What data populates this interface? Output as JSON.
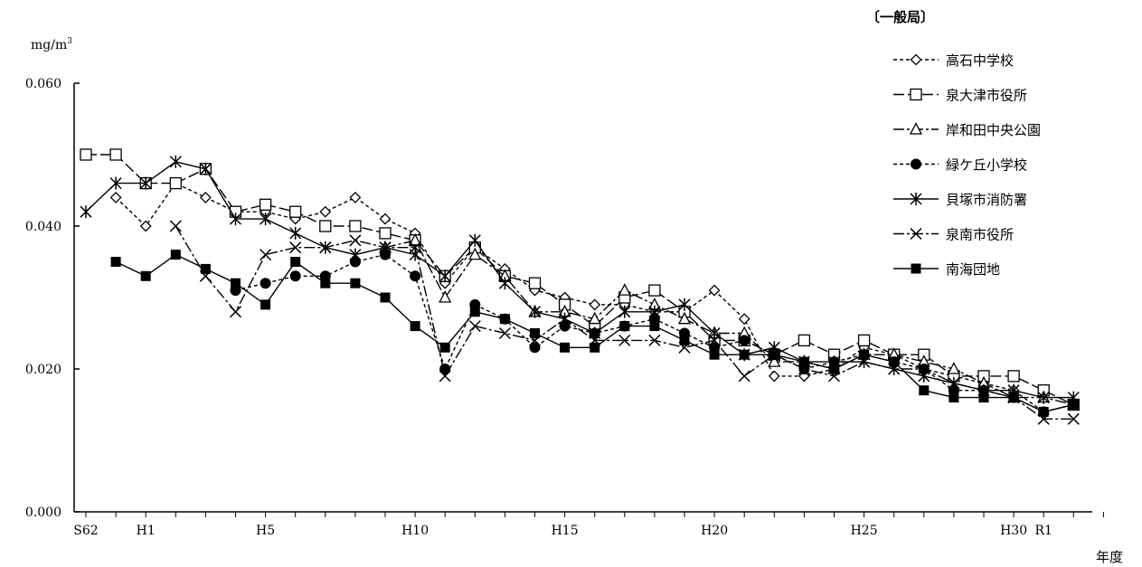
{
  "chart_data": {
    "type": "line",
    "title": "",
    "group_label": "〔一般局〕",
    "ylabel": "mg/m",
    "ylabel_sup": "3",
    "xlabel": "年度",
    "ylim": [
      0,
      0.06
    ],
    "y_ticks": [
      {
        "value": 0.0,
        "label": "0.000"
      },
      {
        "value": 0.02,
        "label": "0.020"
      },
      {
        "value": 0.04,
        "label": "0.040"
      },
      {
        "value": 0.06,
        "label": "0.060"
      }
    ],
    "x": [
      "S62",
      "S63",
      "H1",
      "H2",
      "H3",
      "H4",
      "H5",
      "H6",
      "H7",
      "H8",
      "H9",
      "H10",
      "H11",
      "H12",
      "H13",
      "H14",
      "H15",
      "H16",
      "H17",
      "H18",
      "H19",
      "H20",
      "H21",
      "H22",
      "H23",
      "H24",
      "H25",
      "H26",
      "H27",
      "H28",
      "H29",
      "H30",
      "R1",
      "R2",
      "R3"
    ],
    "x_tick_labels": [
      {
        "index": 0,
        "label": "S62"
      },
      {
        "index": 2,
        "label": "H1"
      },
      {
        "index": 6,
        "label": "H5"
      },
      {
        "index": 11,
        "label": "H10"
      },
      {
        "index": 16,
        "label": "H15"
      },
      {
        "index": 21,
        "label": "H20"
      },
      {
        "index": 26,
        "label": "H25"
      },
      {
        "index": 31,
        "label": "H30"
      },
      {
        "index": 32,
        "label": "R1"
      }
    ],
    "legend_position": "right",
    "series": [
      {
        "name": "高石中学校",
        "marker": "diamond-open",
        "dash": "4,3",
        "style": "dashed",
        "values": [
          null,
          0.044,
          0.04,
          0.046,
          0.044,
          0.042,
          0.042,
          0.041,
          0.042,
          0.044,
          0.041,
          0.039,
          0.032,
          0.037,
          0.034,
          0.031,
          0.03,
          0.029,
          0.029,
          0.028,
          0.028,
          0.031,
          0.027,
          0.019,
          0.019,
          0.02,
          0.023,
          0.022,
          0.02,
          0.019,
          0.018,
          0.017,
          0.014,
          0.015,
          null
        ]
      },
      {
        "name": "泉大津市役所",
        "marker": "square-open",
        "dash": "12,4",
        "style": "long-dash",
        "values": [
          0.05,
          0.05,
          0.046,
          0.046,
          0.048,
          0.042,
          0.043,
          0.042,
          0.04,
          0.04,
          0.039,
          0.038,
          0.033,
          0.037,
          0.033,
          0.032,
          0.029,
          0.026,
          0.03,
          0.031,
          0.028,
          0.024,
          0.024,
          0.022,
          0.024,
          0.022,
          0.024,
          0.022,
          0.022,
          0.019,
          0.019,
          0.019,
          0.017,
          0.015,
          null
        ]
      },
      {
        "name": "岸和田中央公園",
        "marker": "triangle-open",
        "dash": "12,3,3,3",
        "style": "dash-dot",
        "values": [
          null,
          null,
          null,
          null,
          null,
          null,
          null,
          null,
          null,
          null,
          0.037,
          0.038,
          0.03,
          0.036,
          0.033,
          0.028,
          0.028,
          0.027,
          0.031,
          0.029,
          0.027,
          0.025,
          0.025,
          0.021,
          0.021,
          0.02,
          0.022,
          0.022,
          0.021,
          0.02,
          0.018,
          0.016,
          0.016,
          0.015,
          null
        ]
      },
      {
        "name": "緑ケ丘小学校",
        "marker": "circle-filled",
        "dash": "4,3",
        "style": "dashed",
        "values": [
          null,
          null,
          null,
          null,
          null,
          0.031,
          0.032,
          0.033,
          0.033,
          0.035,
          0.036,
          0.033,
          0.02,
          0.029,
          0.027,
          0.023,
          0.026,
          0.025,
          0.026,
          0.027,
          0.025,
          0.023,
          0.024,
          0.022,
          0.02,
          0.021,
          0.022,
          0.021,
          0.02,
          0.017,
          0.017,
          0.016,
          0.014,
          0.015,
          null
        ]
      },
      {
        "name": "貝塚市消防署",
        "marker": "asterisk",
        "dash": "",
        "style": "solid",
        "values": [
          0.042,
          0.046,
          0.046,
          0.049,
          0.048,
          0.041,
          0.041,
          0.039,
          0.037,
          0.036,
          0.037,
          0.036,
          0.033,
          0.038,
          0.032,
          0.028,
          0.027,
          0.025,
          0.028,
          0.028,
          0.029,
          0.025,
          0.022,
          0.023,
          0.021,
          0.021,
          0.021,
          0.02,
          0.019,
          0.018,
          0.017,
          0.017,
          0.016,
          0.016,
          null
        ]
      },
      {
        "name": "泉南市役所",
        "marker": "x-cross",
        "dash": "12,3,3,3",
        "style": "dash-dot",
        "values": [
          null,
          null,
          null,
          0.04,
          0.033,
          0.028,
          0.036,
          0.037,
          0.037,
          0.038,
          0.037,
          0.037,
          0.019,
          0.026,
          0.025,
          0.024,
          0.027,
          0.024,
          0.024,
          0.024,
          0.023,
          0.024,
          0.019,
          0.022,
          0.02,
          0.019,
          0.021,
          0.02,
          0.02,
          0.018,
          0.017,
          0.016,
          0.013,
          0.013,
          null
        ]
      },
      {
        "name": "南海団地",
        "marker": "square-filled",
        "dash": "",
        "style": "solid",
        "values": [
          null,
          0.035,
          0.033,
          0.036,
          0.034,
          0.032,
          0.029,
          0.035,
          0.032,
          0.032,
          0.03,
          0.026,
          0.023,
          0.028,
          0.027,
          0.025,
          0.023,
          0.023,
          0.026,
          0.026,
          0.024,
          0.022,
          0.022,
          0.022,
          0.021,
          0.02,
          0.022,
          0.021,
          0.017,
          0.016,
          0.016,
          0.016,
          0.014,
          0.015,
          null
        ]
      }
    ]
  }
}
